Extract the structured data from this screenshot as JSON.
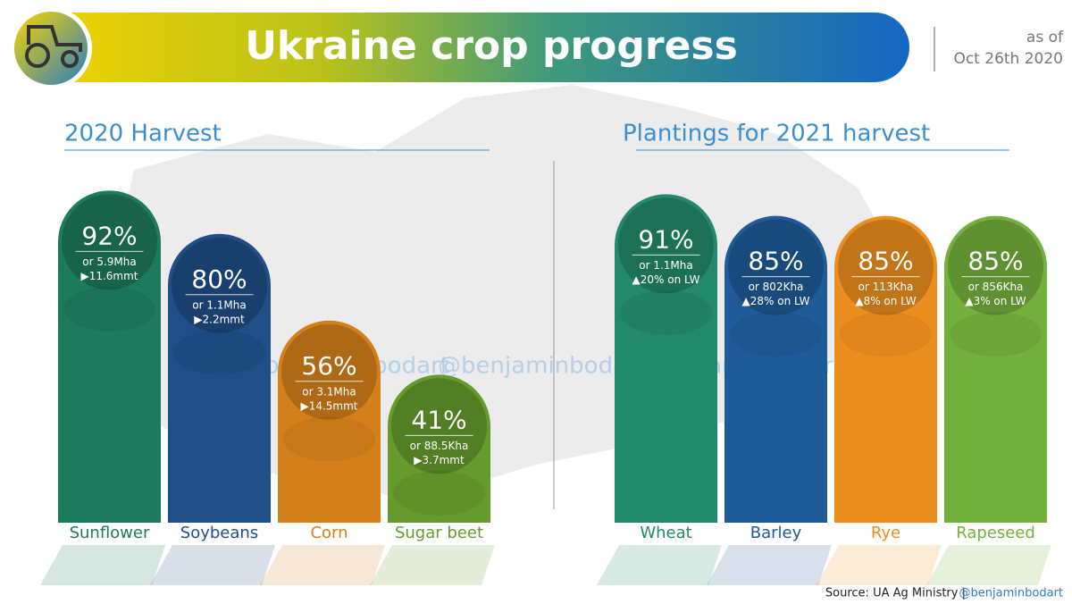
{
  "header": {
    "title": "Ukraine crop progress",
    "as_of": "as of",
    "date": "Oct 26th 2020"
  },
  "footer": {
    "source": "Source: UA Ag Ministry |",
    "handle": "@benjaminbodart"
  },
  "watermark": "@benjaminbodart",
  "chart_data": [
    {
      "type": "bar",
      "title": "2020 Harvest",
      "categories": [
        "Sunflower",
        "Soybeans",
        "Corn",
        "Sugar beet"
      ],
      "values": [
        92,
        80,
        56,
        41
      ],
      "value_labels": [
        "92%",
        "80%",
        "56%",
        "41%"
      ],
      "notes": [
        [
          "or 5.9Mha",
          "▶11.6mmt"
        ],
        [
          "or 1.1Mha",
          "▶2.2mmt"
        ],
        [
          "or 3.1Mha",
          "▶14.5mmt"
        ],
        [
          "or 88.5Kha",
          "▶3.7mmt"
        ]
      ],
      "colors": [
        "#1d7a5c",
        "#1f4f86",
        "#d4801a",
        "#659a2c"
      ],
      "ylim": [
        0,
        100
      ]
    },
    {
      "type": "bar",
      "title": "Plantings for 2021 harvest",
      "categories": [
        "Wheat",
        "Barley",
        "Rye",
        "Rapeseed"
      ],
      "values": [
        91,
        85,
        85,
        85
      ],
      "value_labels": [
        "91%",
        "85%",
        "85%",
        "85%"
      ],
      "notes": [
        [
          "or 1.1Mha",
          "▲20% on LW"
        ],
        [
          "or 802Kha",
          "▲28% on LW"
        ],
        [
          "or 113Kha",
          "▲8% on LW"
        ],
        [
          "or 856Kha",
          "▲3% on LW"
        ]
      ],
      "colors": [
        "#22896a",
        "#1f5b98",
        "#ec8e1e",
        "#74b03d"
      ],
      "ylim": [
        0,
        100
      ]
    }
  ]
}
